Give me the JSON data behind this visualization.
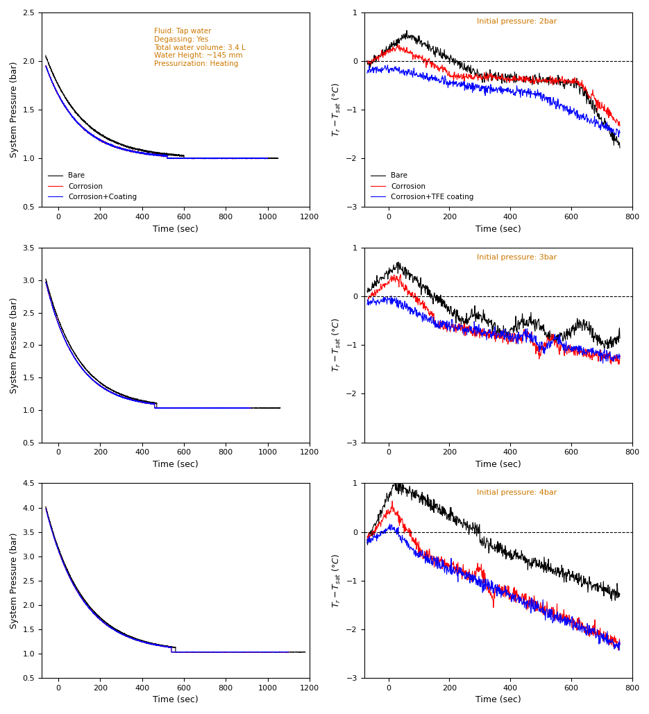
{
  "annotation_color": "#CC7700",
  "label_color": "#CC7700",
  "colors": {
    "bare": "#000000",
    "corrosion": "#FF0000",
    "coating": "#0000FF"
  },
  "pressure_plots": [
    {
      "ylim": [
        0.5,
        2.5
      ],
      "yticks": [
        0.5,
        1.0,
        1.5,
        2.0,
        2.5
      ],
      "xlim": [
        -80,
        1200
      ],
      "xticks": [
        0,
        200,
        400,
        600,
        800,
        1000,
        1200
      ],
      "p0_bare": 2.05,
      "p0_corr": 1.95,
      "p0_coat": 1.95,
      "p_end": 1.0,
      "tau_bare": 180,
      "tau_corr": 160,
      "tau_coat": 160,
      "t_flat_bare": 600,
      "t_flat_corr": 520,
      "t_flat_coat": 520,
      "t_end_bare": 1050,
      "t_end_corr": 1000,
      "t_end_coat": 1000,
      "has_legend": true,
      "has_annotation": true
    },
    {
      "ylim": [
        0.5,
        3.5
      ],
      "yticks": [
        0.5,
        1.0,
        1.5,
        2.0,
        2.5,
        3.0,
        3.5
      ],
      "xlim": [
        -80,
        1200
      ],
      "xticks": [
        0,
        200,
        400,
        600,
        800,
        1000,
        1200
      ],
      "p0_bare": 3.02,
      "p0_corr": 2.97,
      "p0_coat": 2.97,
      "p_end": 1.03,
      "tau_bare": 160,
      "tau_corr": 150,
      "tau_coat": 150,
      "t_flat_bare": 470,
      "t_flat_corr": 460,
      "t_flat_coat": 460,
      "t_end_bare": 1060,
      "t_end_corr": 920,
      "t_end_coat": 920,
      "has_legend": false,
      "has_annotation": false
    },
    {
      "ylim": [
        0.5,
        4.5
      ],
      "yticks": [
        0.5,
        1.0,
        1.5,
        2.0,
        2.5,
        3.0,
        3.5,
        4.0,
        4.5
      ],
      "xlim": [
        -80,
        1200
      ],
      "xticks": [
        0,
        200,
        400,
        600,
        800,
        1000,
        1200
      ],
      "p0_bare": 4.02,
      "p0_corr": 3.98,
      "p0_coat": 3.98,
      "p_end": 1.03,
      "tau_bare": 180,
      "tau_corr": 175,
      "tau_coat": 175,
      "t_flat_bare": 560,
      "t_flat_corr": 540,
      "t_flat_coat": 540,
      "t_end_bare": 1180,
      "t_end_corr": 1100,
      "t_end_coat": 1100,
      "has_legend": false,
      "has_annotation": false
    }
  ],
  "temp_plots": [
    {
      "ylim": [
        -3,
        1
      ],
      "yticks": [
        -3,
        -2,
        -1,
        0,
        1
      ],
      "xlim": [
        -80,
        800
      ],
      "xticks": [
        0,
        200,
        400,
        600,
        800
      ],
      "label": "Initial pressure: 2bar",
      "has_legend": true
    },
    {
      "ylim": [
        -3,
        1
      ],
      "yticks": [
        -3,
        -2,
        -1,
        0,
        1
      ],
      "xlim": [
        -80,
        800
      ],
      "xticks": [
        0,
        200,
        400,
        600,
        800
      ],
      "label": "Initial pressure: 3bar",
      "has_legend": false
    },
    {
      "ylim": [
        -3,
        1
      ],
      "yticks": [
        -3,
        -2,
        -1,
        0,
        1
      ],
      "xlim": [
        -80,
        800
      ],
      "xticks": [
        0,
        200,
        400,
        600,
        800
      ],
      "label": "Initial pressure: 4bar",
      "has_legend": false
    }
  ],
  "legend_labels_pressure": [
    "Bare",
    "Corrosion",
    "Corrosion+Coating"
  ],
  "legend_labels_temp": [
    "Bare",
    "Corrosion",
    "Corrosion+TFE coating"
  ],
  "xlabel": "Time (sec)",
  "ylabel_pressure": "System Pressure (bar)",
  "linewidth": 0.8
}
